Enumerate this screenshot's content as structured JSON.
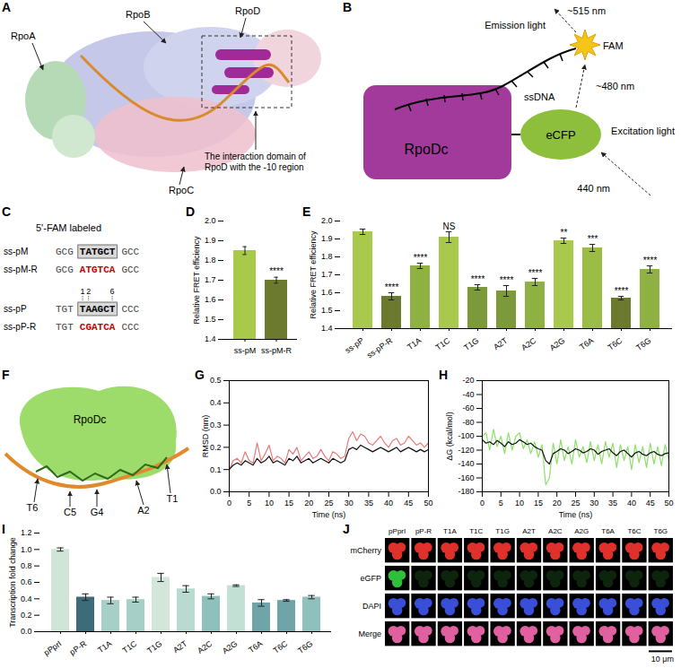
{
  "panels": {
    "A": {
      "letter": "A",
      "subunit_labels": [
        "RpoA",
        "RpoB",
        "RpoC",
        "RpoD"
      ],
      "callout": "The interaction domain of RpoD with the -10 region"
    },
    "B": {
      "letter": "B",
      "protein": "RpoDc",
      "donor": "eCFP",
      "acceptor": "FAM",
      "strand": "ssDNA",
      "emission": "Emission light",
      "emission_wavelength": "~515 nm",
      "transfer_wavelength": "~480 nm",
      "excitation_wavelength": "440 nm",
      "excitation": "Excitation light"
    },
    "C": {
      "letter": "C",
      "header": "5'-FAM labeled",
      "rows": [
        {
          "name": "ss-pM",
          "left": "GCG",
          "core": "TATGCT",
          "right": "GCC",
          "mutant": false
        },
        {
          "name": "ss-pM-R",
          "left": "GCG",
          "core": "ATGTCA",
          "right": "GCC",
          "mutant": true
        },
        {
          "name": "ss-pP",
          "left": "TGT",
          "core": "TAAGCT",
          "right": "CCC",
          "mutant": false
        },
        {
          "name": "ss-pP-R",
          "left": "TGT",
          "core": "CGATCA",
          "right": "CCC",
          "mutant": true
        }
      ],
      "position_marks": [
        1,
        2,
        6
      ]
    },
    "F": {
      "letter": "F",
      "protein": "RpoDc",
      "nucleotide_labels": [
        "T1",
        "A2",
        "G4",
        "C5",
        "T6"
      ]
    },
    "J": {
      "letter": "J",
      "channels": [
        "mCherry",
        "eGFP",
        "DAPI",
        "Merge"
      ],
      "samples": [
        "pPprI",
        "pP-R",
        "T1A",
        "T1C",
        "T1G",
        "A2T",
        "A2C",
        "A2G",
        "T6A",
        "T6C",
        "T6G"
      ],
      "green_signal": [
        true,
        false,
        false,
        false,
        false,
        false,
        false,
        false,
        false,
        false,
        false
      ],
      "scale_bar": "10 μm"
    }
  },
  "chart_data": [
    {
      "panel": "D",
      "type": "bar",
      "categories": [
        "ss-pM",
        "ss-pM-R"
      ],
      "values": [
        1.85,
        1.7
      ],
      "errors": [
        0.02,
        0.015
      ],
      "significance": [
        null,
        "****"
      ],
      "colors": [
        "#a8c94a",
        "#6b7a2e"
      ],
      "y_label": "Relative FRET efficiency",
      "ylim": [
        1.4,
        2.0
      ],
      "yticks": [
        1.4,
        1.5,
        1.6,
        1.7,
        1.8,
        1.9,
        {
          "value": 2,
          "label": "2.0"
        }
      ]
    },
    {
      "panel": "E",
      "type": "bar",
      "categories": [
        "ss-pP",
        "ss-pP-R",
        "T1A",
        "T1C",
        "T1G",
        "A2T",
        "A2C",
        "A2G",
        "T6A",
        "T6C",
        "T6G"
      ],
      "values": [
        1.94,
        1.58,
        1.75,
        1.91,
        1.63,
        1.61,
        1.66,
        1.89,
        1.85,
        1.57,
        1.73
      ],
      "errors": [
        0.015,
        0.02,
        0.015,
        0.03,
        0.015,
        0.03,
        0.02,
        0.015,
        0.02,
        0.01,
        0.02
      ],
      "significance": [
        null,
        "****",
        "****",
        "NS",
        "****",
        "****",
        "****",
        "**",
        "***",
        "****",
        "****"
      ],
      "colors": [
        "#a8c94a",
        "#6b7a2e",
        "#8fb042",
        "#a8c94a",
        "#7d9a3a",
        "#7d9a3a",
        "#8fb042",
        "#a8c94a",
        "#9bbd45",
        "#6b7a2e",
        "#8fb042"
      ],
      "y_label": "Relative FRET efficiency",
      "ylim": [
        1.4,
        2.0
      ],
      "yticks": [
        1.4,
        1.5,
        1.6,
        1.7,
        1.8,
        1.9,
        {
          "value": 2,
          "label": "2.0"
        }
      ]
    },
    {
      "panel": "G",
      "type": "line",
      "x_label": "Time (ns)",
      "y_label": "RMSD (nm)",
      "x": [
        0,
        1,
        2,
        3,
        4,
        5,
        6,
        7,
        8,
        9,
        10,
        11,
        12,
        13,
        14,
        15,
        16,
        17,
        18,
        19,
        20,
        21,
        22,
        23,
        24,
        25,
        26,
        27,
        28,
        29,
        30,
        31,
        32,
        33,
        34,
        35,
        36,
        37,
        38,
        39,
        40,
        41,
        42,
        43,
        44,
        45,
        46,
        47,
        48,
        49,
        50
      ],
      "series": [
        {
          "color": "#e87a7a",
          "values": [
            0.1,
            0.14,
            0.15,
            0.13,
            0.18,
            0.14,
            0.13,
            0.22,
            0.14,
            0.17,
            0.21,
            0.14,
            0.16,
            0.15,
            0.13,
            0.19,
            0.17,
            0.2,
            0.14,
            0.16,
            0.18,
            0.15,
            0.16,
            0.19,
            0.16,
            0.14,
            0.18,
            0.17,
            0.15,
            0.16,
            0.24,
            0.27,
            0.23,
            0.26,
            0.25,
            0.22,
            0.21,
            0.23,
            0.25,
            0.22,
            0.2,
            0.23,
            0.24,
            0.21,
            0.22,
            0.25,
            0.23,
            0.21,
            0.22,
            0.2,
            0.22
          ]
        },
        {
          "color": "#111111",
          "values": [
            0.1,
            0.12,
            0.13,
            0.12,
            0.14,
            0.13,
            0.12,
            0.15,
            0.13,
            0.14,
            0.16,
            0.13,
            0.14,
            0.13,
            0.12,
            0.15,
            0.14,
            0.16,
            0.13,
            0.14,
            0.15,
            0.13,
            0.14,
            0.15,
            0.14,
            0.13,
            0.15,
            0.14,
            0.13,
            0.14,
            0.19,
            0.2,
            0.19,
            0.21,
            0.2,
            0.19,
            0.18,
            0.19,
            0.2,
            0.19,
            0.18,
            0.19,
            0.2,
            0.18,
            0.19,
            0.2,
            0.19,
            0.18,
            0.19,
            0.18,
            0.19
          ]
        }
      ],
      "xlim": [
        0,
        50
      ],
      "xticks": [
        0,
        5,
        10,
        15,
        20,
        25,
        30,
        35,
        40,
        45,
        50
      ],
      "ylim": [
        0,
        0.5
      ],
      "yticks": [
        {
          "value": 0,
          "label": "0.0"
        },
        0.1,
        0.2,
        0.3,
        0.4,
        0.5
      ]
    },
    {
      "panel": "H",
      "type": "line",
      "x_label": "Time (ns)",
      "y_label": "ΔG (kcal/mol)",
      "x": [
        0,
        1,
        2,
        3,
        4,
        5,
        6,
        7,
        8,
        9,
        10,
        11,
        12,
        13,
        14,
        15,
        16,
        17,
        18,
        19,
        20,
        21,
        22,
        23,
        24,
        25,
        26,
        27,
        28,
        29,
        30,
        31,
        32,
        33,
        34,
        35,
        36,
        37,
        38,
        39,
        40,
        41,
        42,
        43,
        44,
        45,
        46,
        47,
        48,
        49,
        50
      ],
      "series": [
        {
          "color": "#8ee06a",
          "values": [
            -100,
            -95,
            -120,
            -90,
            -115,
            -100,
            -125,
            -95,
            -120,
            -100,
            -95,
            -118,
            -105,
            -125,
            -108,
            -130,
            -112,
            -170,
            -160,
            -110,
            -140,
            -105,
            -135,
            -115,
            -140,
            -105,
            -130,
            -115,
            -138,
            -108,
            -135,
            -112,
            -140,
            -108,
            -130,
            -110,
            -145,
            -112,
            -135,
            -115,
            -148,
            -112,
            -138,
            -115,
            -145,
            -110,
            -140,
            -115,
            -142,
            -112,
            -135
          ]
        },
        {
          "color": "#111111",
          "values": [
            -105,
            -110,
            -108,
            -112,
            -106,
            -110,
            -115,
            -108,
            -112,
            -110,
            -105,
            -108,
            -112,
            -110,
            -115,
            -118,
            -120,
            -135,
            -140,
            -125,
            -122,
            -118,
            -120,
            -125,
            -122,
            -118,
            -120,
            -124,
            -122,
            -118,
            -120,
            -126,
            -122,
            -120,
            -118,
            -124,
            -128,
            -122,
            -120,
            -125,
            -130,
            -124,
            -122,
            -126,
            -128,
            -124,
            -122,
            -126,
            -128,
            -125,
            -124
          ]
        }
      ],
      "xlim": [
        0,
        50
      ],
      "xticks": [
        0,
        5,
        10,
        15,
        20,
        25,
        30,
        35,
        40,
        45,
        50
      ],
      "ylim": [
        -180,
        -20
      ],
      "yticks": [
        -180,
        -160,
        -140,
        -120,
        -100,
        -80,
        -60,
        -40,
        -20
      ]
    },
    {
      "panel": "I",
      "type": "bar",
      "categories": [
        "pPprI",
        "pP-R",
        "T1A",
        "T1C",
        "T1G",
        "A2T",
        "A2C",
        "A2G",
        "T6A",
        "T6C",
        "T6G"
      ],
      "values": [
        1.0,
        0.42,
        0.38,
        0.39,
        0.66,
        0.52,
        0.43,
        0.56,
        0.35,
        0.38,
        0.42
      ],
      "errors": [
        0.02,
        0.04,
        0.04,
        0.03,
        0.05,
        0.04,
        0.03,
        0.01,
        0.04,
        0.01,
        0.02
      ],
      "colors": [
        "#cfe5d8",
        "#3d6b7a",
        "#a6cfc7",
        "#a6cfc7",
        "#d2e6da",
        "#b8dad0",
        "#8fc0bb",
        "#c3e0d5",
        "#6fa5a8",
        "#6fa5a8",
        "#8fc0bb"
      ],
      "y_label": "Transcription fold change",
      "ylim": [
        0,
        1.2
      ],
      "yticks": [
        {
          "value": 0,
          "label": "0.0"
        },
        0.2,
        0.4,
        0.6,
        0.8,
        {
          "value": 1,
          "label": "1.0"
        },
        1.2
      ]
    }
  ]
}
